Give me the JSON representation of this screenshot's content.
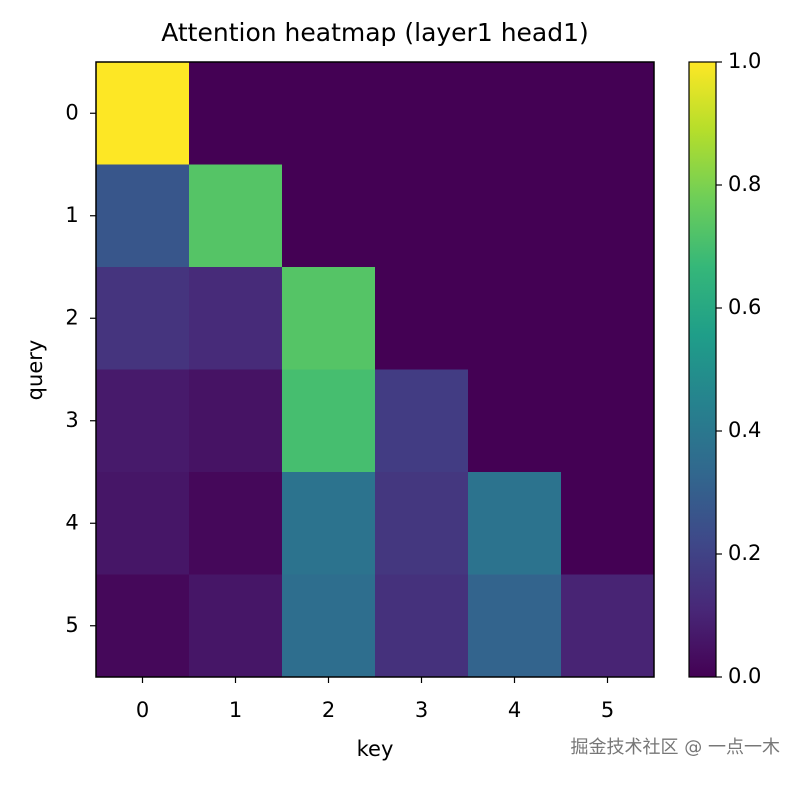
{
  "chart_data": {
    "type": "heatmap",
    "title": "Attention heatmap (layer1 head1)",
    "xlabel": "key",
    "ylabel": "query",
    "colormap": "viridis",
    "values": [
      [
        1.0,
        0,
        0,
        0,
        0,
        0
      ],
      [
        0.27,
        0.73,
        0,
        0,
        0,
        0
      ],
      [
        0.15,
        0.12,
        0.73,
        0,
        0,
        0
      ],
      [
        0.07,
        0.05,
        0.7,
        0.18,
        0,
        0
      ],
      [
        0.06,
        0.02,
        0.38,
        0.16,
        0.38,
        0
      ],
      [
        0.02,
        0.06,
        0.36,
        0.14,
        0.32,
        0.1
      ]
    ],
    "xlim": [
      -0.5,
      5.5
    ],
    "ylim": [
      5.5,
      -0.5
    ],
    "xticks": [
      0,
      1,
      2,
      3,
      4,
      5
    ],
    "yticks": [
      0,
      1,
      2,
      3,
      4,
      5
    ],
    "zlim": [
      0,
      1
    ],
    "colorbar_ticks": [
      {
        "value": 0,
        "label": "0.0"
      },
      {
        "value": 0.2,
        "label": "0.2"
      },
      {
        "value": 0.4,
        "label": "0.4"
      },
      {
        "value": 0.6,
        "label": "0.6"
      },
      {
        "value": 0.8,
        "label": "0.8"
      },
      {
        "value": 1,
        "label": "1.0"
      }
    ],
    "watermark": "掘金技术社区 @ 一点一木"
  }
}
